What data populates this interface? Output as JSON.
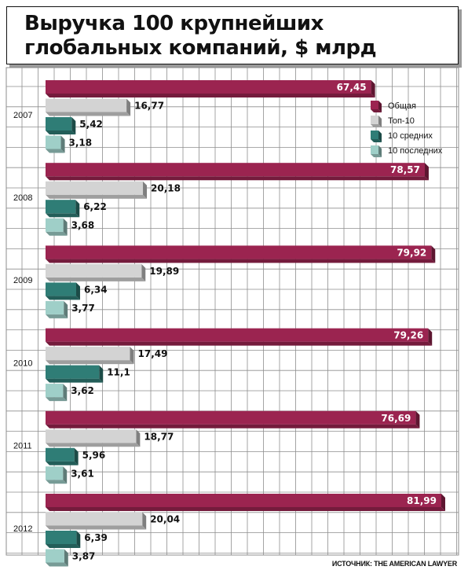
{
  "title": "Выручка 100 крупнейших глобальных компаний, $ млрд",
  "source": "ИСТОЧНИК: THE AMERICAN LAWYER",
  "colors": {
    "total": "#9b2450",
    "top10": "#d3d3d3",
    "mid10": "#2f7d76",
    "last10": "#9fcfc8",
    "grid": "#8e8e8e"
  },
  "chart_data": {
    "type": "bar",
    "orientation": "horizontal",
    "title": "Выручка 100 крупнейших глобальных компаний, $ млрд",
    "categories": [
      "2007",
      "2008",
      "2009",
      "2010",
      "2011",
      "2012"
    ],
    "series": [
      {
        "name": "Общая",
        "key": "total",
        "values": [
          67.45,
          78.57,
          79.92,
          79.26,
          76.69,
          81.99
        ],
        "labels": [
          "67,45",
          "78,57",
          "79,92",
          "79,26",
          "76,69",
          "81,99"
        ]
      },
      {
        "name": "Топ-10",
        "key": "top10",
        "values": [
          16.77,
          20.18,
          19.89,
          17.49,
          18.77,
          20.04
        ],
        "labels": [
          "16,77",
          "20,18",
          "19,89",
          "17,49",
          "18,77",
          "20,04"
        ]
      },
      {
        "name": "10 средних",
        "key": "mid10",
        "values": [
          5.42,
          6.22,
          6.34,
          11.1,
          5.96,
          6.39
        ],
        "labels": [
          "5,42",
          "6,22",
          "6,34",
          "11,1",
          "5,96",
          "6,39"
        ]
      },
      {
        "name": "10 последних",
        "key": "last10",
        "values": [
          3.18,
          3.68,
          3.77,
          3.62,
          3.61,
          3.87
        ],
        "labels": [
          "3,18",
          "3,68",
          "3,77",
          "3,62",
          "3,61",
          "3,87"
        ]
      }
    ],
    "xlim": [
      0,
      90
    ],
    "grid": true,
    "legend_position": "top-right"
  }
}
